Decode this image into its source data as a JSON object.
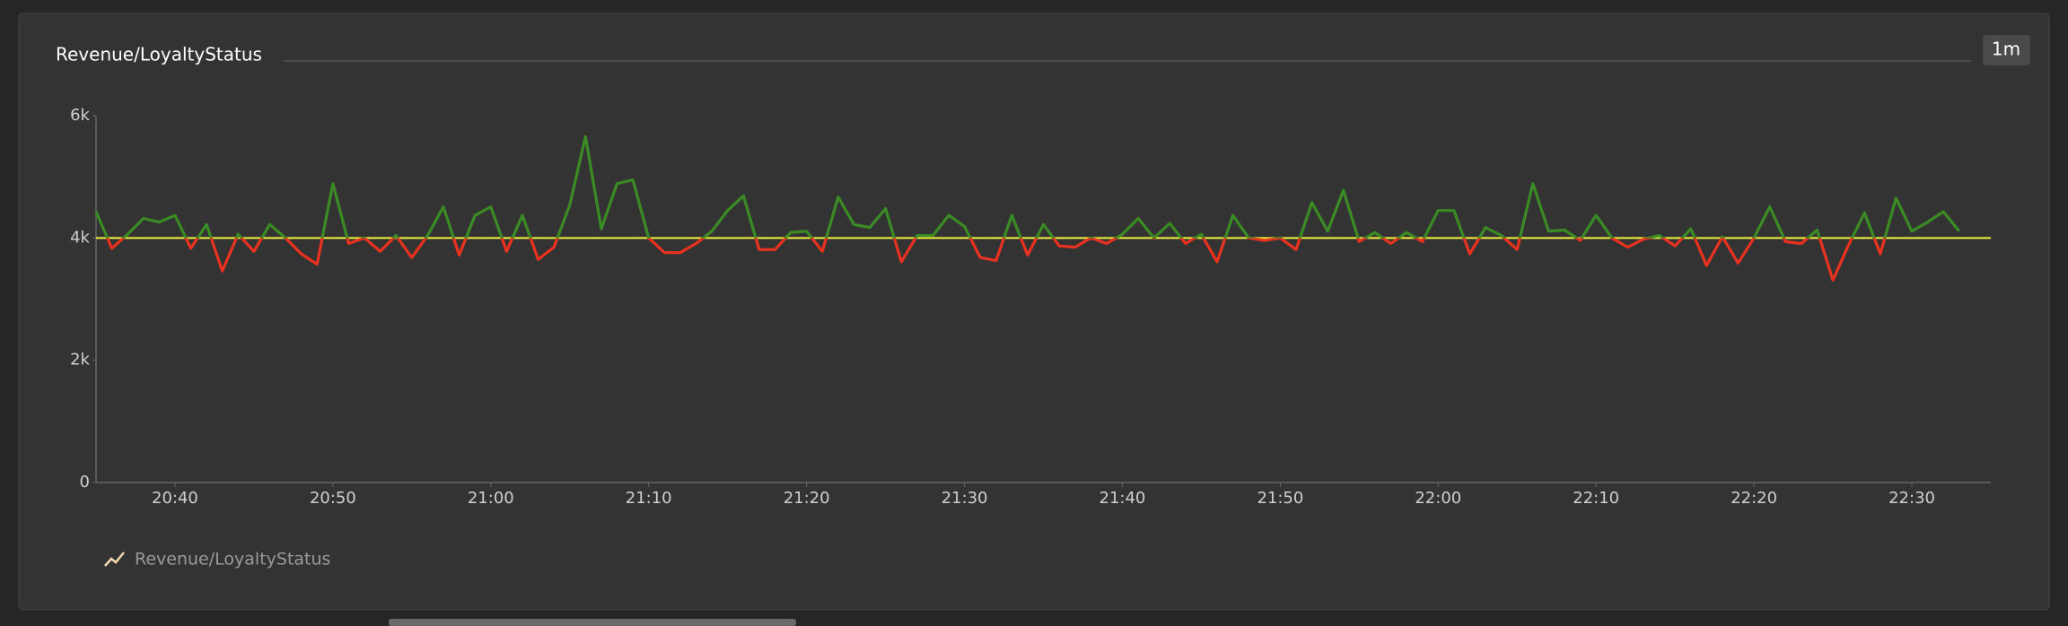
{
  "controls": {
    "interval": "1m"
  },
  "chart_data": {
    "type": "line",
    "title": "Revenue/LoyaltyStatus",
    "x": [
      "20:35",
      "20:36",
      "20:37",
      "20:38",
      "20:39",
      "20:40",
      "20:41",
      "20:42",
      "20:43",
      "20:44",
      "20:45",
      "20:46",
      "20:47",
      "20:48",
      "20:49",
      "20:50",
      "20:51",
      "20:52",
      "20:53",
      "20:54",
      "20:55",
      "20:56",
      "20:57",
      "20:58",
      "20:59",
      "21:00",
      "21:01",
      "21:02",
      "21:03",
      "21:04",
      "21:05",
      "21:06",
      "21:07",
      "21:08",
      "21:09",
      "21:10",
      "21:11",
      "21:12",
      "21:13",
      "21:14",
      "21:15",
      "21:16",
      "21:17",
      "21:18",
      "21:19",
      "21:20",
      "21:21",
      "21:22",
      "21:23",
      "21:24",
      "21:25",
      "21:26",
      "21:27",
      "21:28",
      "21:29",
      "21:30",
      "21:31",
      "21:32",
      "21:33",
      "21:34",
      "21:35",
      "21:36",
      "21:37",
      "21:38",
      "21:39",
      "21:40",
      "21:41",
      "21:42",
      "21:43",
      "21:44",
      "21:45",
      "21:46",
      "21:47",
      "21:48",
      "21:49",
      "21:50",
      "21:51",
      "21:52",
      "21:53",
      "21:54",
      "21:55",
      "21:56",
      "21:57",
      "21:58",
      "21:59",
      "22:00",
      "22:01",
      "22:02",
      "22:03",
      "22:04",
      "22:05",
      "22:06",
      "22:07",
      "22:08",
      "22:09",
      "22:10",
      "22:11",
      "22:12",
      "22:13",
      "22:14",
      "22:15",
      "22:16",
      "22:17",
      "22:18",
      "22:19",
      "22:20",
      "22:21",
      "22:22",
      "22:23",
      "22:24",
      "22:25",
      "22:26",
      "22:27",
      "22:28",
      "22:29",
      "22:30",
      "22:31",
      "22:32",
      "22:33"
    ],
    "series": [
      {
        "name": "Revenue/LoyaltyStatus",
        "color": "#3b8b24",
        "below_color": "#e8321f",
        "values": [
          4430,
          3830,
          4060,
          4320,
          4260,
          4370,
          3830,
          4220,
          3460,
          4060,
          3780,
          4220,
          4000,
          3740,
          3570,
          4890,
          3910,
          4000,
          3780,
          4040,
          3680,
          4040,
          4510,
          3720,
          4370,
          4510,
          3780,
          4370,
          3650,
          3850,
          4540,
          5660,
          4150,
          4890,
          4950,
          4000,
          3760,
          3760,
          3910,
          4110,
          4450,
          4690,
          3810,
          3810,
          4090,
          4110,
          3780,
          4670,
          4220,
          4170,
          4480,
          3610,
          4040,
          4040,
          4370,
          4190,
          3680,
          3630,
          4370,
          3720,
          4220,
          3870,
          3850,
          4000,
          3910,
          4060,
          4320,
          4000,
          4240,
          3910,
          4060,
          3610,
          4370,
          4000,
          3960,
          4000,
          3810,
          4580,
          4110,
          4780,
          3940,
          4090,
          3910,
          4090,
          3940,
          4450,
          4450,
          3740,
          4170,
          4040,
          3810,
          4890,
          4110,
          4130,
          3960,
          4370,
          4000,
          3850,
          3980,
          4040,
          3870,
          4150,
          3550,
          4020,
          3590,
          4000,
          4510,
          3940,
          3910,
          4130,
          3310,
          3890,
          4410,
          3740,
          4650,
          4110,
          4260,
          4430,
          4110
        ]
      }
    ],
    "threshold": 4000,
    "threshold_color": "#f2f23c",
    "xlim": [
      "20:35",
      "22:35"
    ],
    "xticks": [
      "20:40",
      "20:50",
      "21:00",
      "21:10",
      "21:20",
      "21:30",
      "21:40",
      "21:50",
      "22:00",
      "22:10",
      "22:20",
      "22:30"
    ],
    "ylim": [
      0,
      6000
    ],
    "yticks": [
      0,
      {
        "value": 2000,
        "label": "2k"
      },
      {
        "value": 4000,
        "label": "4k"
      },
      {
        "value": 6000,
        "label": "6k"
      }
    ],
    "grid": false,
    "legend": "bottom-left"
  }
}
